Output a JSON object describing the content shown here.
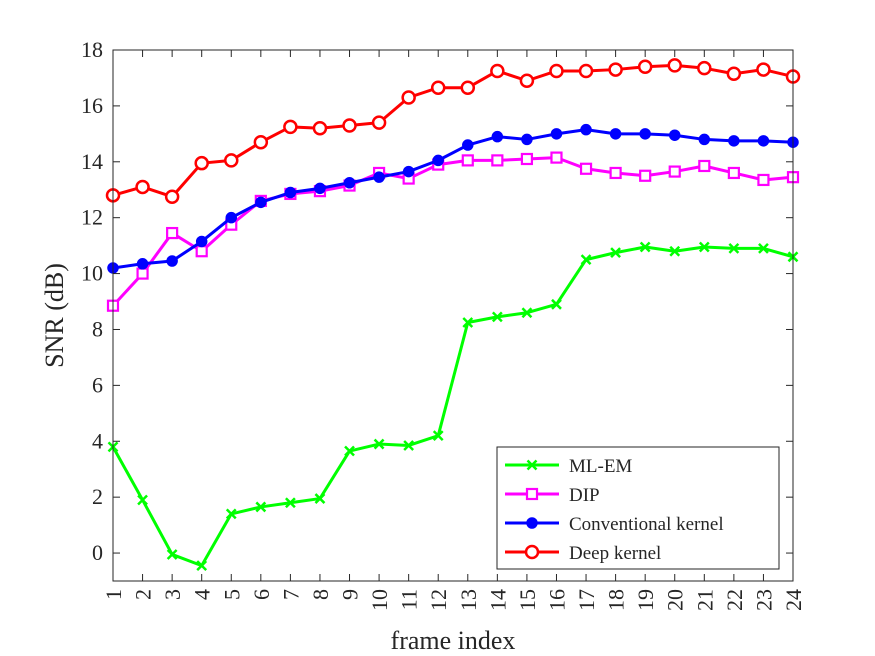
{
  "chart_data": {
    "type": "line",
    "title": "",
    "xlabel": "frame index",
    "ylabel": "SNR (dB)",
    "x": [
      1,
      2,
      3,
      4,
      5,
      6,
      7,
      8,
      9,
      10,
      11,
      12,
      13,
      14,
      15,
      16,
      17,
      18,
      19,
      20,
      21,
      22,
      23,
      24
    ],
    "xlim": [
      1,
      24
    ],
    "ylim": [
      -1,
      18
    ],
    "yticks": [
      0,
      2,
      4,
      6,
      8,
      10,
      12,
      14,
      16,
      18
    ],
    "grid": false,
    "legend_position": "bottom-right",
    "series": [
      {
        "name": "ML-EM",
        "color": "#00ff00",
        "marker": "x",
        "values": [
          3.8,
          1.9,
          -0.05,
          -0.45,
          1.4,
          1.65,
          1.8,
          1.95,
          3.65,
          3.9,
          3.85,
          4.2,
          8.25,
          8.45,
          8.6,
          8.9,
          10.5,
          10.75,
          10.95,
          10.8,
          10.95,
          10.9,
          10.9,
          10.6
        ]
      },
      {
        "name": "DIP",
        "color": "#ff00ff",
        "marker": "square",
        "values": [
          8.85,
          10.0,
          11.45,
          10.8,
          11.75,
          12.6,
          12.85,
          12.95,
          13.15,
          13.6,
          13.4,
          13.9,
          14.05,
          14.05,
          14.1,
          14.15,
          13.75,
          13.6,
          13.5,
          13.65,
          13.85,
          13.6,
          13.35,
          13.45
        ]
      },
      {
        "name": "Conventional kernel",
        "color": "#0000ff",
        "marker": "filled-circle",
        "values": [
          10.2,
          10.35,
          10.45,
          11.15,
          12.0,
          12.55,
          12.9,
          13.05,
          13.25,
          13.45,
          13.65,
          14.05,
          14.6,
          14.9,
          14.8,
          15.0,
          15.15,
          15.0,
          15.0,
          14.95,
          14.8,
          14.75,
          14.75,
          14.7
        ]
      },
      {
        "name": "Deep kernel",
        "color": "#ff0000",
        "marker": "open-circle",
        "values": [
          12.8,
          13.1,
          12.75,
          13.95,
          14.05,
          14.7,
          15.25,
          15.2,
          15.3,
          15.4,
          16.3,
          16.65,
          16.65,
          17.25,
          16.9,
          17.25,
          17.25,
          17.3,
          17.4,
          17.45,
          17.35,
          17.15,
          17.3,
          17.05
        ]
      }
    ]
  }
}
